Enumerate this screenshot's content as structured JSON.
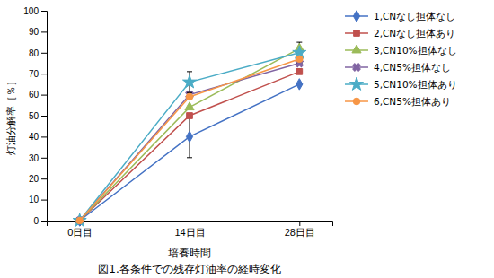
{
  "chart_data": {
    "type": "line",
    "title": "図1.各条件での残存灯油率の経時変化",
    "xlabel": "培養時間",
    "ylabel": "灯油分解率［％］",
    "categories": [
      "0日目",
      "14日目",
      "28日目"
    ],
    "series": [
      {
        "name": "1,CNなし担体なし",
        "color": "#4472C4",
        "marker": "diamond",
        "values": [
          0,
          40,
          65
        ],
        "yerr_low": [
          0,
          10,
          0
        ],
        "yerr_high": [
          0,
          10,
          0
        ]
      },
      {
        "name": "2,CNなし担体あり",
        "color": "#C0504D",
        "marker": "square",
        "values": [
          0,
          50,
          71
        ],
        "yerr_low": [
          0,
          0,
          0
        ],
        "yerr_high": [
          0,
          0,
          0
        ]
      },
      {
        "name": "3,CN10%担体なし",
        "color": "#9BBB59",
        "marker": "triangle",
        "values": [
          0,
          54,
          82
        ],
        "yerr_low": [
          0,
          0,
          2
        ],
        "yerr_high": [
          0,
          0,
          3
        ]
      },
      {
        "name": "4,CN5%担体なし",
        "color": "#8064A2",
        "marker": "x",
        "values": [
          0,
          60,
          75
        ],
        "yerr_low": [
          0,
          0,
          0
        ],
        "yerr_high": [
          0,
          0,
          0
        ]
      },
      {
        "name": "5,CN10%担体あり",
        "color": "#4BACC6",
        "marker": "star",
        "values": [
          0,
          66,
          80
        ],
        "yerr_low": [
          0,
          5,
          0
        ],
        "yerr_high": [
          0,
          5,
          0
        ]
      },
      {
        "name": "6,CN5%担体あり",
        "color": "#F79646",
        "marker": "circle",
        "values": [
          0,
          59,
          77
        ],
        "yerr_low": [
          0,
          0,
          0
        ],
        "yerr_high": [
          0,
          0,
          0
        ]
      }
    ],
    "ylim": [
      0,
      100
    ],
    "yticks": [
      0,
      10,
      20,
      30,
      40,
      50,
      60,
      70,
      80,
      90,
      100
    ],
    "grid": false,
    "legend": "right"
  }
}
